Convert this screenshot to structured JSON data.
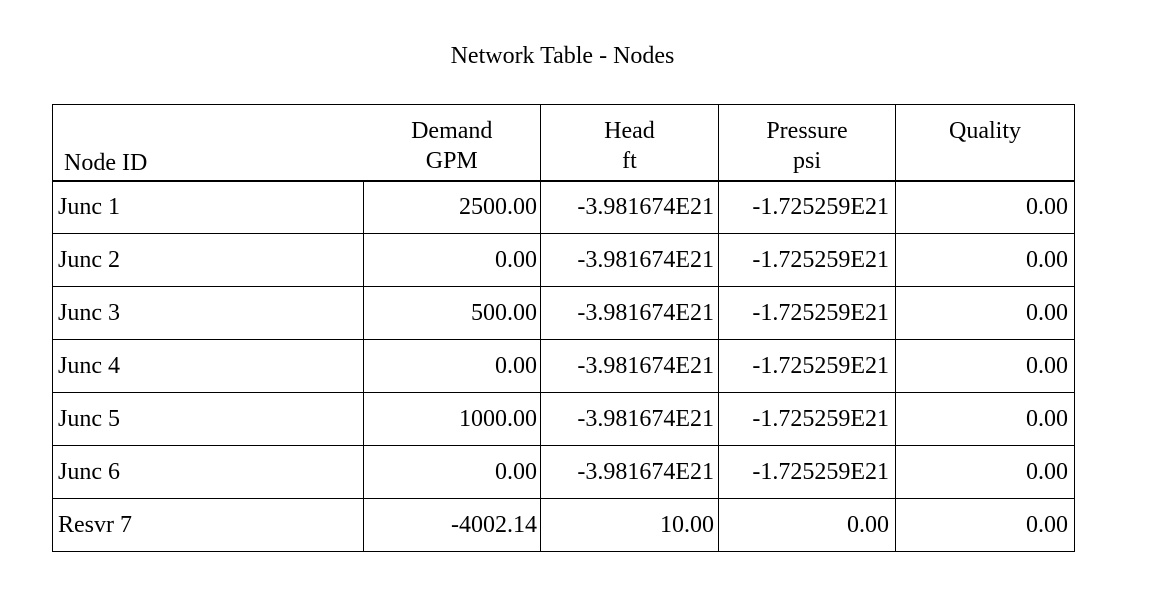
{
  "title": "Network Table - Nodes",
  "columns": [
    {
      "name": "Node ID",
      "unit": ""
    },
    {
      "name": "Demand",
      "unit": "GPM"
    },
    {
      "name": "Head",
      "unit": "ft"
    },
    {
      "name": "Pressure",
      "unit": "psi"
    },
    {
      "name": "Quality",
      "unit": ""
    }
  ],
  "rows": [
    {
      "id": "Junc 1",
      "demand": "2500.00",
      "head": "-3.981674E21",
      "pressure": "-1.725259E21",
      "quality": "0.00"
    },
    {
      "id": "Junc 2",
      "demand": "0.00",
      "head": "-3.981674E21",
      "pressure": "-1.725259E21",
      "quality": "0.00"
    },
    {
      "id": "Junc 3",
      "demand": "500.00",
      "head": "-3.981674E21",
      "pressure": "-1.725259E21",
      "quality": "0.00"
    },
    {
      "id": "Junc 4",
      "demand": "0.00",
      "head": "-3.981674E21",
      "pressure": "-1.725259E21",
      "quality": "0.00"
    },
    {
      "id": "Junc 5",
      "demand": "1000.00",
      "head": "-3.981674E21",
      "pressure": "-1.725259E21",
      "quality": "0.00"
    },
    {
      "id": "Junc 6",
      "demand": "0.00",
      "head": "-3.981674E21",
      "pressure": "-1.725259E21",
      "quality": "0.00"
    },
    {
      "id": "Resvr 7",
      "demand": "-4002.14",
      "head": "10.00",
      "pressure": "0.00",
      "quality": "0.00"
    }
  ]
}
